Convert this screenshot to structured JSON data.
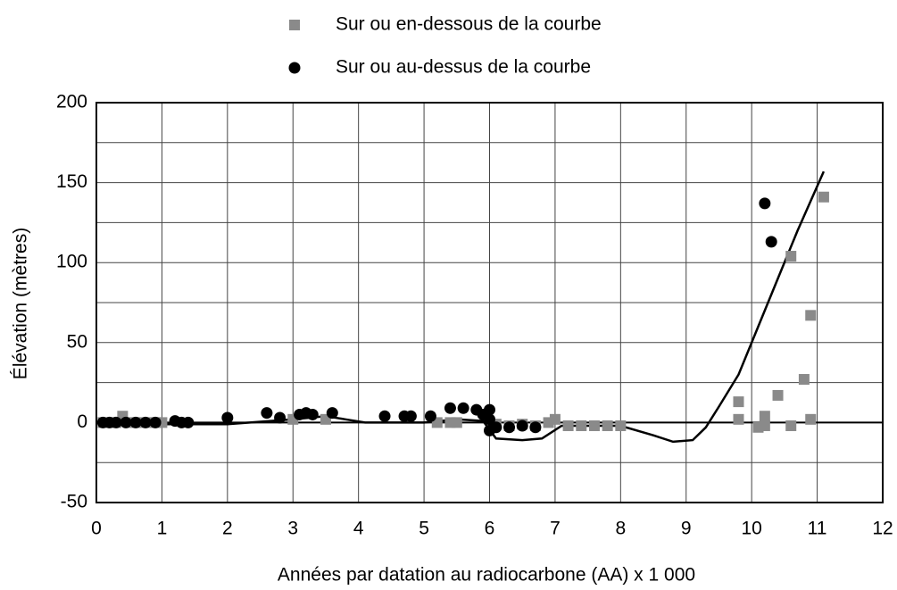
{
  "chart_data": {
    "type": "scatter",
    "xlabel": "Années par datation au radiocarbone (AA) x 1 000",
    "ylabel": "Élévation (mètres)",
    "xlim": [
      0,
      12
    ],
    "xticks": [
      0,
      1,
      2,
      3,
      4,
      5,
      6,
      7,
      8,
      9,
      10,
      11,
      12
    ],
    "ylim": [
      -50,
      200
    ],
    "yticks": [
      -50,
      0,
      50,
      100,
      150,
      200
    ],
    "grid": true,
    "legend": "top",
    "series": [
      {
        "name": "Sur ou en-dessous de la courbe",
        "marker": "square",
        "color": "#8a8a8a",
        "x": [
          0.1,
          0.2,
          0.3,
          0.4,
          0.5,
          0.6,
          0.7,
          0.8,
          0.9,
          1.0,
          3.0,
          3.5,
          5.2,
          5.4,
          5.5,
          6.1,
          6.3,
          6.5,
          6.7,
          6.9,
          7.0,
          7.2,
          7.4,
          7.6,
          7.8,
          8.0,
          9.8,
          9.8,
          10.1,
          10.2,
          10.2,
          10.4,
          10.6,
          10.6,
          10.8,
          10.9,
          10.9,
          11.1
        ],
        "y": [
          0,
          0,
          0,
          4,
          0,
          0,
          0,
          0,
          0,
          0,
          2,
          2,
          0,
          0,
          0,
          -1,
          -2,
          -1,
          -2,
          0,
          2,
          -2,
          -2,
          -2,
          -2,
          -2,
          13,
          2,
          -3,
          4,
          -2,
          17,
          104,
          -2,
          27,
          67,
          2,
          141
        ]
      },
      {
        "name": "Sur ou au-dessus de la courbe",
        "marker": "circle",
        "color": "#000000",
        "x": [
          0.1,
          0.2,
          0.3,
          0.45,
          0.6,
          0.75,
          0.9,
          1.2,
          1.3,
          1.4,
          2.0,
          2.6,
          2.8,
          3.1,
          3.2,
          3.3,
          3.6,
          4.4,
          4.7,
          4.8,
          5.1,
          5.4,
          5.6,
          5.8,
          5.9,
          6.0,
          6.0,
          6.0,
          6.1,
          6.3,
          6.5,
          6.7,
          10.2,
          10.3
        ],
        "y": [
          0,
          0,
          0,
          0,
          0,
          0,
          0,
          1,
          0,
          0,
          3,
          6,
          3,
          5,
          6,
          5,
          6,
          4,
          4,
          4,
          4,
          9,
          9,
          8,
          5,
          8,
          2,
          -5,
          -3,
          -3,
          -2,
          -3,
          137,
          113
        ]
      }
    ],
    "curve": {
      "color": "#000000",
      "x": [
        0.1,
        1,
        2,
        3,
        3.5,
        3.8,
        4.1,
        5,
        5.5,
        5.9,
        6.1,
        6.5,
        6.8,
        7.1,
        8,
        8.5,
        8.8,
        9.1,
        9.3,
        9.5,
        9.8,
        10.1,
        10.4,
        10.7,
        11.1
      ],
      "y": [
        0,
        -1,
        -1,
        2,
        4,
        2,
        0,
        0,
        2,
        1,
        -10,
        -11,
        -10,
        -2,
        -2,
        -8,
        -12,
        -11,
        -3,
        10,
        30,
        60,
        90,
        120,
        157
      ]
    }
  }
}
